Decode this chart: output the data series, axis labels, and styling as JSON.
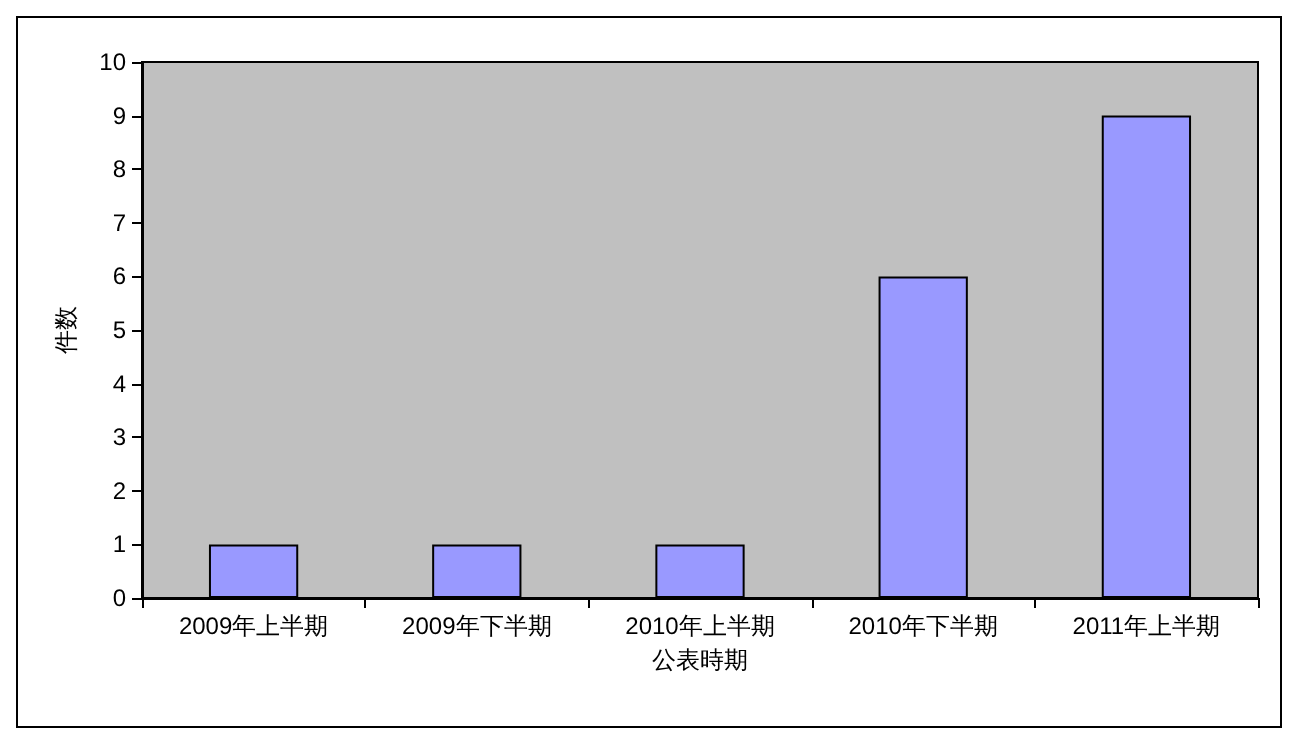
{
  "chart_data": {
    "type": "bar",
    "xlabel": "公表時期",
    "ylabel": "件数",
    "categories": [
      "2009年上半期",
      "2009年下半期",
      "2010年上半期",
      "2010年下半期",
      "2011年上半期"
    ],
    "values": [
      1,
      1,
      1,
      6,
      9
    ],
    "color": "#9999ff",
    "ylim": [
      0,
      10
    ],
    "yticks": [
      0,
      1,
      2,
      3,
      4,
      5,
      6,
      7,
      8,
      9,
      10
    ],
    "grid": false
  }
}
